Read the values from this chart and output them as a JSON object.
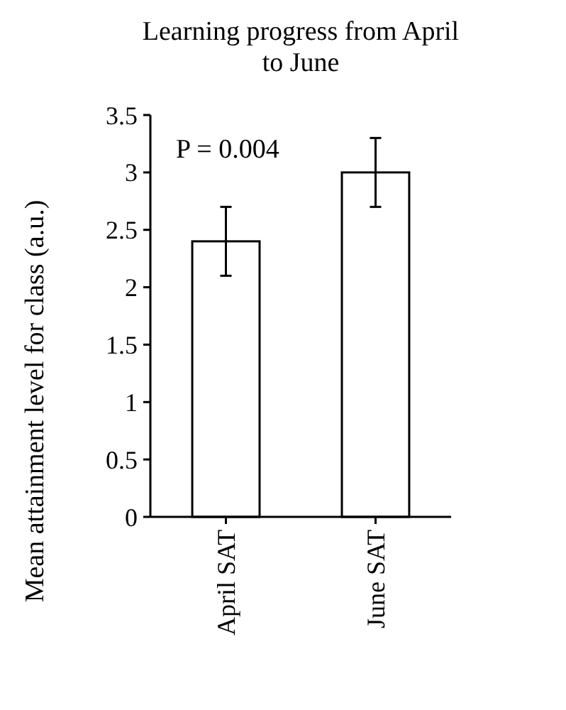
{
  "chart_data": {
    "type": "bar",
    "title": "Learning progress from April to June",
    "ylabel": "Mean attainment level for class (a.u.)",
    "categories": [
      "April SAT",
      "June SAT"
    ],
    "values": [
      2.4,
      3.0
    ],
    "errors": [
      0.3,
      0.3
    ],
    "color": "#ffffff",
    "ylim": [
      0,
      3.5
    ],
    "yticks": [
      0,
      0.5,
      1,
      1.5,
      2,
      2.5,
      3,
      3.5
    ],
    "annotations": [
      "P = 0.004"
    ],
    "grid": false
  }
}
